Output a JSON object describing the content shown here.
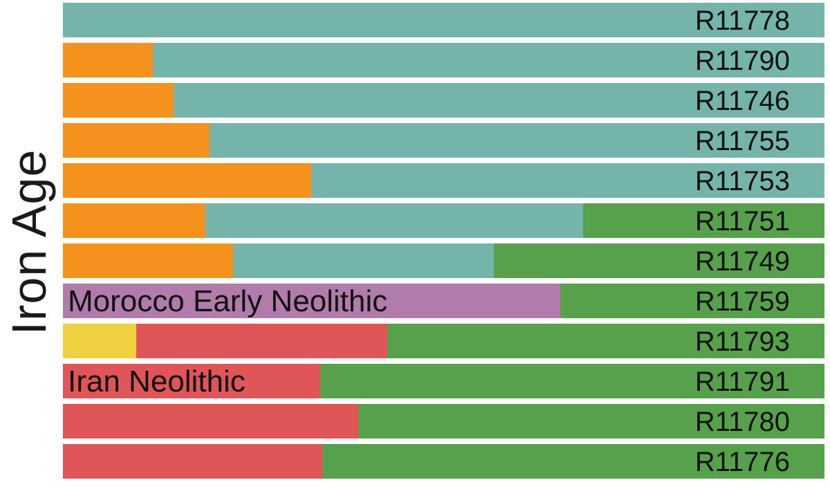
{
  "chart_data": {
    "type": "bar",
    "orientation": "horizontal",
    "stacked": true,
    "y_axis_label": "Iron Age",
    "grid": false,
    "legend_position": "none",
    "value_unit": "percent of bar width",
    "xlim": [
      0,
      100
    ],
    "palette": {
      "teal": "#75b4ab",
      "orange": "#f5921e",
      "green": "#57a14c",
      "purple": "#b17cab",
      "yellow": "#eed041",
      "red": "#e05558"
    },
    "annotations": [
      {
        "bar": "R11759",
        "component": "purple",
        "text": "Morocco Early Neolithic"
      },
      {
        "bar": "R11791",
        "component": "red",
        "text": "Iran Neolithic"
      }
    ],
    "bars": [
      {
        "id": "R11778",
        "segments": [
          {
            "component": "teal",
            "pct": 100
          }
        ]
      },
      {
        "id": "R11790",
        "segments": [
          {
            "component": "orange",
            "pct": 11.8
          },
          {
            "component": "teal",
            "pct": 88.2
          }
        ]
      },
      {
        "id": "R11746",
        "segments": [
          {
            "component": "orange",
            "pct": 14.5
          },
          {
            "component": "teal",
            "pct": 85.5
          }
        ]
      },
      {
        "id": "R11755",
        "segments": [
          {
            "component": "orange",
            "pct": 19.3
          },
          {
            "component": "teal",
            "pct": 80.7
          }
        ]
      },
      {
        "id": "R11753",
        "segments": [
          {
            "component": "orange",
            "pct": 32.6
          },
          {
            "component": "teal",
            "pct": 67.4
          }
        ]
      },
      {
        "id": "R11751",
        "segments": [
          {
            "component": "orange",
            "pct": 18.7
          },
          {
            "component": "teal",
            "pct": 49.6
          },
          {
            "component": "green",
            "pct": 31.7
          }
        ]
      },
      {
        "id": "R11749",
        "segments": [
          {
            "component": "orange",
            "pct": 22.3
          },
          {
            "component": "teal",
            "pct": 34.3
          },
          {
            "component": "green",
            "pct": 43.4
          }
        ]
      },
      {
        "id": "R11759",
        "segments": [
          {
            "component": "purple",
            "pct": 65.3
          },
          {
            "component": "green",
            "pct": 34.7
          }
        ]
      },
      {
        "id": "R11793",
        "segments": [
          {
            "component": "yellow",
            "pct": 9.6
          },
          {
            "component": "red",
            "pct": 33.0
          },
          {
            "component": "green",
            "pct": 57.4
          }
        ]
      },
      {
        "id": "R11791",
        "segments": [
          {
            "component": "red",
            "pct": 33.8
          },
          {
            "component": "green",
            "pct": 66.2
          }
        ]
      },
      {
        "id": "R11780",
        "segments": [
          {
            "component": "red",
            "pct": 38.8
          },
          {
            "component": "green",
            "pct": 61.2
          }
        ]
      },
      {
        "id": "R11776",
        "segments": [
          {
            "component": "red",
            "pct": 34.1
          },
          {
            "component": "green",
            "pct": 65.9
          }
        ]
      }
    ]
  }
}
